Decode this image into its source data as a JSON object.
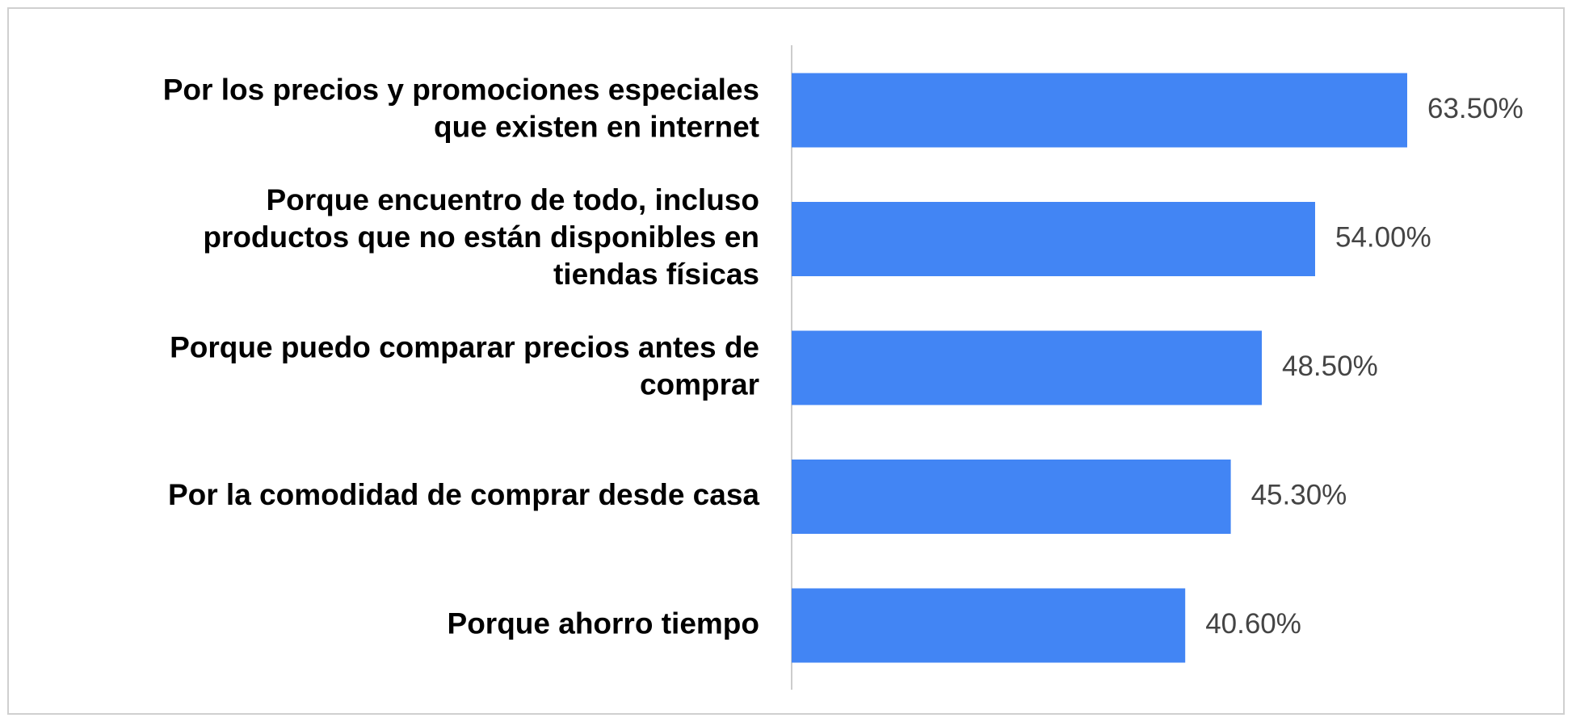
{
  "chart_data": {
    "type": "bar",
    "orientation": "horizontal",
    "color": "#4285f4",
    "categories": [
      "Por los precios y promociones especiales\nque existen en internet",
      "Porque encuentro de todo, incluso\nproductos que no están disponibles en\ntiendas físicas",
      "Porque puedo comparar precios antes de\ncomprar",
      "Por la comodidad de comprar desde casa",
      "Porque ahorro tiempo"
    ],
    "values": [
      63.5,
      54.0,
      48.5,
      45.3,
      40.6
    ],
    "value_labels": [
      "63.50%",
      "54.00%",
      "48.50%",
      "45.30%",
      "40.60%"
    ]
  }
}
